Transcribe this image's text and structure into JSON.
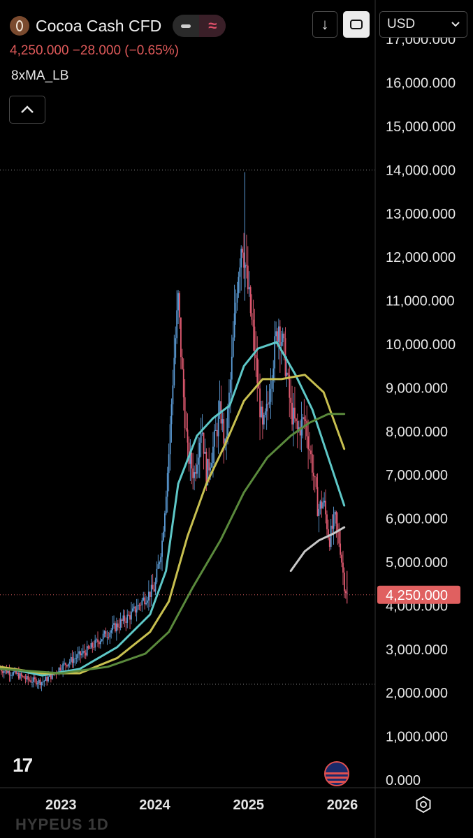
{
  "header": {
    "symbol_name": "Cocoa Cash CFD",
    "wave_glyph": "≈",
    "price_line": "4,250.000  −28.000 (−0.65%)",
    "indicator_name": "8xMA_LB",
    "currency": "USD",
    "download_glyph": "↓",
    "collapse_glyph": "^"
  },
  "footer": {
    "tv_logo_text": "17",
    "ghost_text": "HYPEUS    1D"
  },
  "colors": {
    "up": "#5b9bd5",
    "down": "#e05a70",
    "ma_cyan": "#5ec8c8",
    "ma_yellow": "#c8c050",
    "ma_green": "#5a8a3c",
    "ma_gray": "#c8c8c8",
    "last_price_badge": "#e06060"
  },
  "chart_data": {
    "type": "candlestick",
    "interval_label": "",
    "last_price_label": "4,250.000",
    "last_price": 4250,
    "high_marker": 14000,
    "low_marker": 2200,
    "ylim": [
      0,
      17500
    ],
    "y_ticks": [
      0,
      1000,
      2000,
      3000,
      4000,
      5000,
      6000,
      7000,
      8000,
      9000,
      10000,
      11000,
      12000,
      13000,
      14000,
      15000,
      16000,
      17000
    ],
    "y_tick_labels": [
      "0.000",
      "1,000.000",
      "2,000.000",
      "3,000.000",
      "4,000.000",
      "5,000.000",
      "6,000.000",
      "7,000.000",
      "8,000.000",
      "9,000.000",
      "10,000.000",
      "11,000.000",
      "12,000.000",
      "13,000.000",
      "14,000.000",
      "15,000.000",
      "16,000.000",
      "17,000.000"
    ],
    "x_tick_labels": [
      "2023",
      "2024",
      "2025",
      "2026"
    ],
    "x_tick_positions": [
      2023.0,
      2024.0,
      2025.0,
      2026.0
    ],
    "xlim": [
      2022.35,
      2026.35
    ],
    "price_path": [
      [
        2022.35,
        2550
      ],
      [
        2022.5,
        2450
      ],
      [
        2022.65,
        2300
      ],
      [
        2022.8,
        2250
      ],
      [
        2022.9,
        2400
      ],
      [
        2023.0,
        2600
      ],
      [
        2023.15,
        2800
      ],
      [
        2023.3,
        3000
      ],
      [
        2023.45,
        3300
      ],
      [
        2023.6,
        3550
      ],
      [
        2023.75,
        3800
      ],
      [
        2023.9,
        4200
      ],
      [
        2024.0,
        4400
      ],
      [
        2024.08,
        5500
      ],
      [
        2024.15,
        7500
      ],
      [
        2024.2,
        9500
      ],
      [
        2024.25,
        11000
      ],
      [
        2024.3,
        9000
      ],
      [
        2024.35,
        7500
      ],
      [
        2024.42,
        7000
      ],
      [
        2024.5,
        8200
      ],
      [
        2024.55,
        7000
      ],
      [
        2024.62,
        7600
      ],
      [
        2024.7,
        8500
      ],
      [
        2024.75,
        7600
      ],
      [
        2024.82,
        9500
      ],
      [
        2024.88,
        11500
      ],
      [
        2024.93,
        12500
      ],
      [
        2024.98,
        11500
      ],
      [
        2025.05,
        10200
      ],
      [
        2025.1,
        9000
      ],
      [
        2025.15,
        8000
      ],
      [
        2025.2,
        8500
      ],
      [
        2025.25,
        9500
      ],
      [
        2025.32,
        10500
      ],
      [
        2025.38,
        9800
      ],
      [
        2025.45,
        8500
      ],
      [
        2025.52,
        8000
      ],
      [
        2025.6,
        8300
      ],
      [
        2025.68,
        7200
      ],
      [
        2025.74,
        6200
      ],
      [
        2025.8,
        6400
      ],
      [
        2025.86,
        5500
      ],
      [
        2025.92,
        6000
      ],
      [
        2025.98,
        5300
      ],
      [
        2026.02,
        4500
      ],
      [
        2026.05,
        4250
      ]
    ],
    "series": [
      {
        "name": "",
        "color": "#5ec8c8",
        "points": [
          [
            2022.35,
            2600
          ],
          [
            2022.8,
            2400
          ],
          [
            2023.2,
            2550
          ],
          [
            2023.6,
            3050
          ],
          [
            2023.95,
            3800
          ],
          [
            2024.12,
            4800
          ],
          [
            2024.25,
            6800
          ],
          [
            2024.45,
            7900
          ],
          [
            2024.62,
            8300
          ],
          [
            2024.8,
            8600
          ],
          [
            2024.95,
            9500
          ],
          [
            2025.1,
            9900
          ],
          [
            2025.3,
            10050
          ],
          [
            2025.5,
            9300
          ],
          [
            2025.68,
            8500
          ],
          [
            2025.85,
            7400
          ],
          [
            2026.02,
            6300
          ]
        ]
      },
      {
        "name": "",
        "color": "#c8c050",
        "points": [
          [
            2022.35,
            2600
          ],
          [
            2022.8,
            2450
          ],
          [
            2023.2,
            2450
          ],
          [
            2023.6,
            2800
          ],
          [
            2023.95,
            3400
          ],
          [
            2024.15,
            4100
          ],
          [
            2024.35,
            5600
          ],
          [
            2024.55,
            6800
          ],
          [
            2024.75,
            7700
          ],
          [
            2024.95,
            8700
          ],
          [
            2025.15,
            9200
          ],
          [
            2025.35,
            9200
          ],
          [
            2025.6,
            9300
          ],
          [
            2025.8,
            8900
          ],
          [
            2026.02,
            7600
          ]
        ]
      },
      {
        "name": "",
        "color": "#5a8a3c",
        "points": [
          [
            2022.35,
            2550
          ],
          [
            2023.0,
            2450
          ],
          [
            2023.5,
            2600
          ],
          [
            2023.9,
            2900
          ],
          [
            2024.15,
            3400
          ],
          [
            2024.4,
            4400
          ],
          [
            2024.7,
            5500
          ],
          [
            2024.95,
            6600
          ],
          [
            2025.2,
            7400
          ],
          [
            2025.45,
            7900
          ],
          [
            2025.65,
            8200
          ],
          [
            2025.85,
            8400
          ],
          [
            2026.02,
            8400
          ]
        ]
      },
      {
        "name": "",
        "color": "#c8c8c8",
        "points": [
          [
            2025.45,
            4800
          ],
          [
            2025.6,
            5250
          ],
          [
            2025.75,
            5500
          ],
          [
            2025.9,
            5650
          ],
          [
            2026.02,
            5800
          ]
        ]
      }
    ]
  }
}
